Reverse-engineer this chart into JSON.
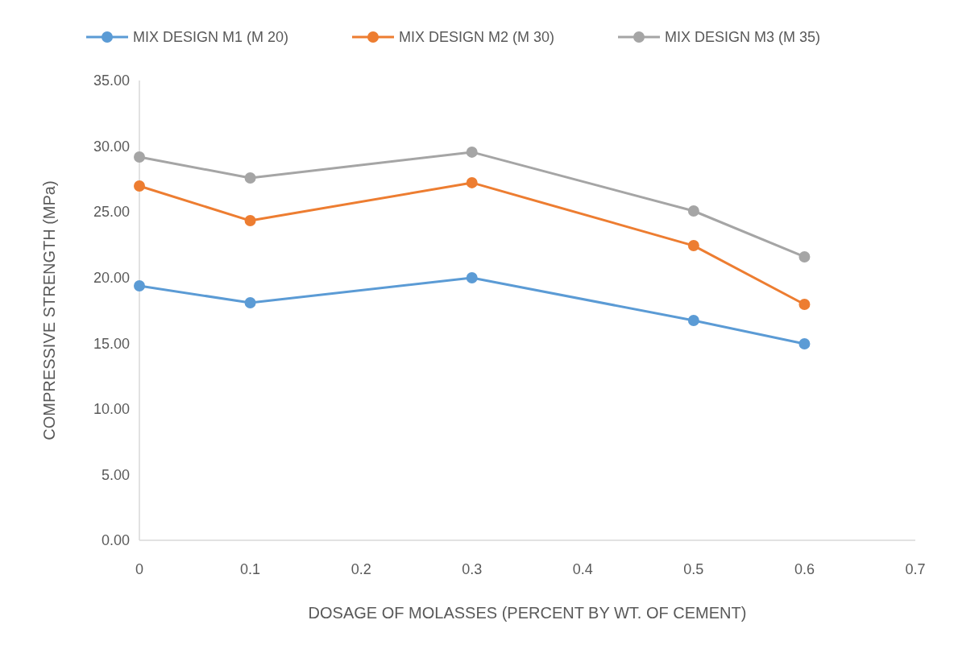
{
  "chart_data": {
    "type": "line",
    "xlabel": "DOSAGE OF MOLASSES (PERCENT BY WT. OF CEMENT)",
    "ylabel": "COMPRESSIVE STRENGTH (MPa)",
    "x": [
      0,
      0.1,
      0.3,
      0.5,
      0.6
    ],
    "series": [
      {
        "name": "MIX DESIGN M1 (M 20)",
        "color": "#5b9bd5",
        "values": [
          19.37,
          18.08,
          19.98,
          16.73,
          14.96
        ]
      },
      {
        "name": "MIX DESIGN M2 (M 30)",
        "color": "#ed7d31",
        "values": [
          26.97,
          24.33,
          27.22,
          22.43,
          17.96
        ]
      },
      {
        "name": "MIX DESIGN M3 (M 35)",
        "color": "#a5a5a5",
        "values": [
          29.18,
          27.58,
          29.55,
          25.07,
          21.58
        ]
      }
    ],
    "xlim": [
      0,
      0.7
    ],
    "xticks": [
      0,
      0.1,
      0.2,
      0.3,
      0.4,
      0.5,
      0.6,
      0.7
    ],
    "ylim": [
      0,
      35
    ],
    "yticks": [
      {
        "value": 0,
        "label": "0.00"
      },
      {
        "value": 5,
        "label": "5.00"
      },
      {
        "value": 10,
        "label": "10.00"
      },
      {
        "value": 15,
        "label": "15.00"
      },
      {
        "value": 20,
        "label": "20.00"
      },
      {
        "value": 25,
        "label": "25.00"
      },
      {
        "value": 30,
        "label": "30.00"
      },
      {
        "value": 35,
        "label": "35.00"
      }
    ],
    "grid": false,
    "legend": "top",
    "marker": "circle",
    "line_style": "solid"
  }
}
